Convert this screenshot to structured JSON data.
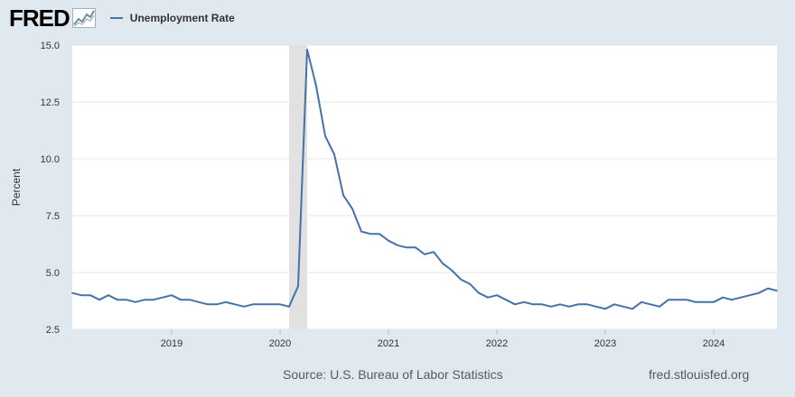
{
  "header": {
    "logo": "FRED",
    "legend_label": "Unemployment Rate"
  },
  "footer": {
    "source": "Source: U.S. Bureau of Labor Statistics",
    "site": "fred.stlouisfed.org"
  },
  "colors": {
    "series": "#4572a7",
    "background": "#e1e9f0",
    "plot": "#ffffff",
    "recession": "#e1e1e1",
    "logo_chart": "#6e8fa6"
  },
  "chart_data": {
    "type": "line",
    "title": "",
    "xlabel": "",
    "ylabel": "Percent",
    "ylim": [
      2.5,
      15.0
    ],
    "yticks": [
      "15.0",
      "12.5",
      "10.0",
      "7.5",
      "5.0",
      "2.5"
    ],
    "ytick_values": [
      15.0,
      12.5,
      10.0,
      7.5,
      5.0,
      2.5
    ],
    "xticks": [
      "2019",
      "2020",
      "2021",
      "2022",
      "2023",
      "2024"
    ],
    "x_start": "2018-02",
    "x_end": "2024-08",
    "grid": true,
    "legend": "top-left",
    "recession": {
      "start": "2020-02",
      "end": "2020-04"
    },
    "series": [
      {
        "name": "Unemployment Rate",
        "x": [
          "2018-02",
          "2018-03",
          "2018-04",
          "2018-05",
          "2018-06",
          "2018-07",
          "2018-08",
          "2018-09",
          "2018-10",
          "2018-11",
          "2018-12",
          "2019-01",
          "2019-02",
          "2019-03",
          "2019-04",
          "2019-05",
          "2019-06",
          "2019-07",
          "2019-08",
          "2019-09",
          "2019-10",
          "2019-11",
          "2019-12",
          "2020-01",
          "2020-02",
          "2020-03",
          "2020-04",
          "2020-05",
          "2020-06",
          "2020-07",
          "2020-08",
          "2020-09",
          "2020-10",
          "2020-11",
          "2020-12",
          "2021-01",
          "2021-02",
          "2021-03",
          "2021-04",
          "2021-05",
          "2021-06",
          "2021-07",
          "2021-08",
          "2021-09",
          "2021-10",
          "2021-11",
          "2021-12",
          "2022-01",
          "2022-02",
          "2022-03",
          "2022-04",
          "2022-05",
          "2022-06",
          "2022-07",
          "2022-08",
          "2022-09",
          "2022-10",
          "2022-11",
          "2022-12",
          "2023-01",
          "2023-02",
          "2023-03",
          "2023-04",
          "2023-05",
          "2023-06",
          "2023-07",
          "2023-08",
          "2023-09",
          "2023-10",
          "2023-11",
          "2023-12",
          "2024-01",
          "2024-02",
          "2024-03",
          "2024-04",
          "2024-05",
          "2024-06",
          "2024-07",
          "2024-08"
        ],
        "values": [
          4.1,
          4.0,
          4.0,
          3.8,
          4.0,
          3.8,
          3.8,
          3.7,
          3.8,
          3.8,
          3.9,
          4.0,
          3.8,
          3.8,
          3.7,
          3.6,
          3.6,
          3.7,
          3.6,
          3.5,
          3.6,
          3.6,
          3.6,
          3.6,
          3.5,
          4.4,
          14.8,
          13.2,
          11.0,
          10.2,
          8.4,
          7.8,
          6.8,
          6.7,
          6.7,
          6.4,
          6.2,
          6.1,
          6.1,
          5.8,
          5.9,
          5.4,
          5.1,
          4.7,
          4.5,
          4.1,
          3.9,
          4.0,
          3.8,
          3.6,
          3.7,
          3.6,
          3.6,
          3.5,
          3.6,
          3.5,
          3.6,
          3.6,
          3.5,
          3.4,
          3.6,
          3.5,
          3.4,
          3.7,
          3.6,
          3.5,
          3.8,
          3.8,
          3.8,
          3.7,
          3.7,
          3.7,
          3.9,
          3.8,
          3.9,
          4.0,
          4.1,
          4.3,
          4.2
        ]
      }
    ]
  }
}
